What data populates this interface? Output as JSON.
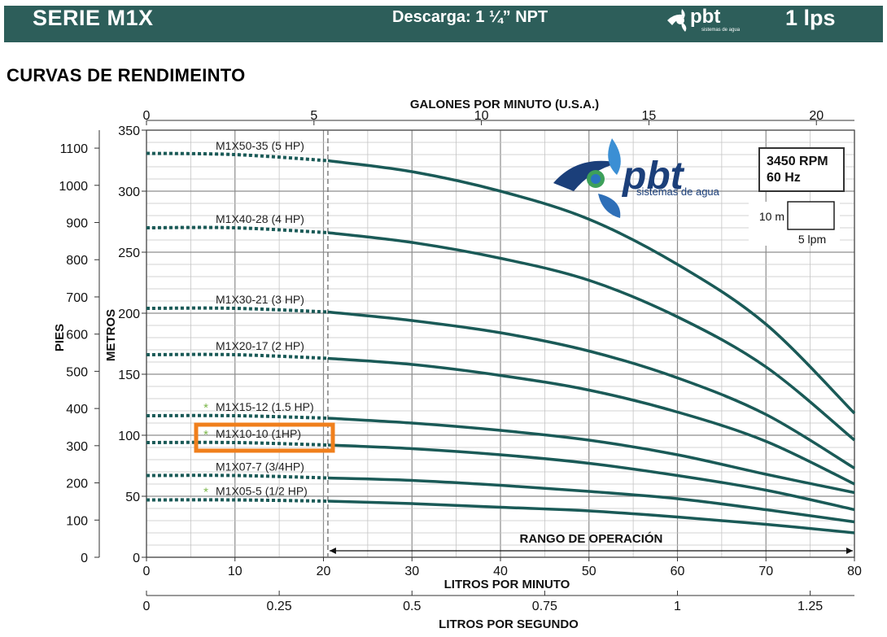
{
  "header": {
    "series": "SERIE M1X",
    "discharge": "Descarga: 1 ¼” NPT",
    "brand_logo_text": "pbt",
    "brand_logo_sub": "sistemas de agua",
    "flow": "1 lps"
  },
  "section_title": "CURVAS DE RENDIMEINTO",
  "colors": {
    "header_bg": "#2d5e5a",
    "curve": "#1a5a57",
    "highlight": "#f07f1c",
    "star": "#7ab648",
    "grid": "#a9a9a9"
  },
  "chart_data": {
    "type": "line",
    "title": "",
    "xlabel": "LITROS POR MINUTO",
    "xlim": [
      0,
      80
    ],
    "x_ticks": [
      0,
      10,
      20,
      30,
      40,
      50,
      60,
      70,
      80
    ],
    "ylabel_left": "METROS",
    "ylim": [
      0,
      350
    ],
    "y_ticks": [
      0,
      50,
      100,
      150,
      200,
      250,
      300,
      350
    ],
    "top_axis": {
      "label": "GALONES POR MINUTO (U.S.A.)",
      "ticks": [
        0,
        5,
        10,
        15,
        20
      ]
    },
    "bottom_axis2": {
      "label": "LITROS POR SEGUNDO",
      "ticks": [
        "0",
        "0.25",
        "0.5",
        "0.75",
        "1",
        "1.25"
      ]
    },
    "feet_axis": {
      "label": "PIES",
      "ticks": [
        0,
        100,
        200,
        300,
        400,
        500,
        600,
        700,
        800,
        900,
        1000,
        1100
      ]
    },
    "operating_range": {
      "label": "RANGO DE OPERACIÓN",
      "x": [
        20.5,
        80
      ]
    },
    "rpm_box": [
      "3450 RPM",
      "60 Hz"
    ],
    "scale_box": {
      "vertical": "10 m",
      "horizontal": "5 lpm"
    },
    "x": [
      0,
      10,
      20.5,
      30,
      40,
      50,
      60,
      70,
      80
    ],
    "series": [
      {
        "name": "M1X50-35 (5 HP)",
        "values": [
          331,
          330,
          325,
          316,
          300,
          277,
          240,
          191,
          118
        ],
        "star": false,
        "highlight": false
      },
      {
        "name": "M1X40-28 (4 HP)",
        "values": [
          270,
          270,
          266,
          258,
          245,
          227,
          197,
          156,
          96
        ],
        "star": false,
        "highlight": false
      },
      {
        "name": "M1X30-21 (3 HP)",
        "values": [
          204,
          204,
          201,
          194,
          184,
          169,
          147,
          117,
          73
        ],
        "star": false,
        "highlight": false
      },
      {
        "name": "M1X20-17 (2 HP)",
        "values": [
          166,
          166,
          163,
          158,
          149,
          137,
          119,
          95,
          60
        ],
        "star": false,
        "highlight": false
      },
      {
        "name": "M1X15-12 (1.5 HP)",
        "values": [
          116,
          116,
          114,
          110,
          104,
          96,
          84,
          68,
          53
        ],
        "star": true,
        "highlight": false
      },
      {
        "name": "M1X10-10 (1HP)",
        "values": [
          94,
          94,
          92,
          89,
          84,
          77,
          67,
          55,
          39
        ],
        "star": true,
        "highlight": true
      },
      {
        "name": "M1X07-7 (3/4HP)",
        "values": [
          67,
          67,
          65,
          63,
          59,
          54,
          48,
          39,
          29
        ],
        "star": false,
        "highlight": false
      },
      {
        "name": "M1X05-5 (1/2 HP)",
        "values": [
          47,
          47,
          46,
          44,
          41,
          38,
          33,
          27,
          20
        ],
        "star": true,
        "highlight": false
      }
    ]
  }
}
